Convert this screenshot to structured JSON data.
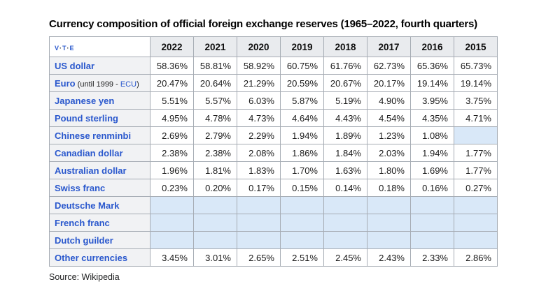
{
  "title": "Currency composition of official foreign exchange reserves (1965–2022, fourth quarters)",
  "source": "Source: Wikipedia",
  "nav": {
    "items": [
      "v",
      "t",
      "e"
    ],
    "separator": "·"
  },
  "colors": {
    "border": "#a6acb4",
    "header_bg": "#e9ebee",
    "label_bg": "#f1f2f4",
    "empty_bg": "#d9e8f8",
    "link_blue": "#2a58cd",
    "text": "#202122"
  },
  "chart_data": {
    "type": "table",
    "title": "Currency composition of official foreign exchange reserves (1965–2022, fourth quarters)",
    "columns": [
      "2022",
      "2021",
      "2020",
      "2019",
      "2018",
      "2017",
      "2016",
      "2015"
    ],
    "rows": [
      {
        "label": "US dollar",
        "values": [
          "58.36%",
          "58.81%",
          "58.92%",
          "60.75%",
          "61.76%",
          "62.73%",
          "65.36%",
          "65.73%"
        ]
      },
      {
        "label": "Euro",
        "note": {
          "pre": " (until 1999 - ",
          "link": "ECU",
          "post": ")"
        },
        "values": [
          "20.47%",
          "20.64%",
          "21.29%",
          "20.59%",
          "20.67%",
          "20.17%",
          "19.14%",
          "19.14%"
        ]
      },
      {
        "label": "Japanese yen",
        "values": [
          "5.51%",
          "5.57%",
          "6.03%",
          "5.87%",
          "5.19%",
          "4.90%",
          "3.95%",
          "3.75%"
        ]
      },
      {
        "label": "Pound sterling",
        "values": [
          "4.95%",
          "4.78%",
          "4.73%",
          "4.64%",
          "4.43%",
          "4.54%",
          "4.35%",
          "4.71%"
        ]
      },
      {
        "label": "Chinese renminbi",
        "values": [
          "2.69%",
          "2.79%",
          "2.29%",
          "1.94%",
          "1.89%",
          "1.23%",
          "1.08%",
          ""
        ]
      },
      {
        "label": "Canadian dollar",
        "values": [
          "2.38%",
          "2.38%",
          "2.08%",
          "1.86%",
          "1.84%",
          "2.03%",
          "1.94%",
          "1.77%"
        ]
      },
      {
        "label": "Australian dollar",
        "values": [
          "1.96%",
          "1.81%",
          "1.83%",
          "1.70%",
          "1.63%",
          "1.80%",
          "1.69%",
          "1.77%"
        ]
      },
      {
        "label": "Swiss franc",
        "values": [
          "0.23%",
          "0.20%",
          "0.17%",
          "0.15%",
          "0.14%",
          "0.18%",
          "0.16%",
          "0.27%"
        ]
      },
      {
        "label": "Deutsche Mark",
        "values": [
          "",
          "",
          "",
          "",
          "",
          "",
          "",
          ""
        ]
      },
      {
        "label": "French franc",
        "values": [
          "",
          "",
          "",
          "",
          "",
          "",
          "",
          ""
        ]
      },
      {
        "label": "Dutch guilder",
        "values": [
          "",
          "",
          "",
          "",
          "",
          "",
          "",
          ""
        ]
      },
      {
        "label": "Other currencies",
        "values": [
          "3.45%",
          "3.01%",
          "2.65%",
          "2.51%",
          "2.45%",
          "2.43%",
          "2.33%",
          "2.86%"
        ]
      }
    ]
  }
}
